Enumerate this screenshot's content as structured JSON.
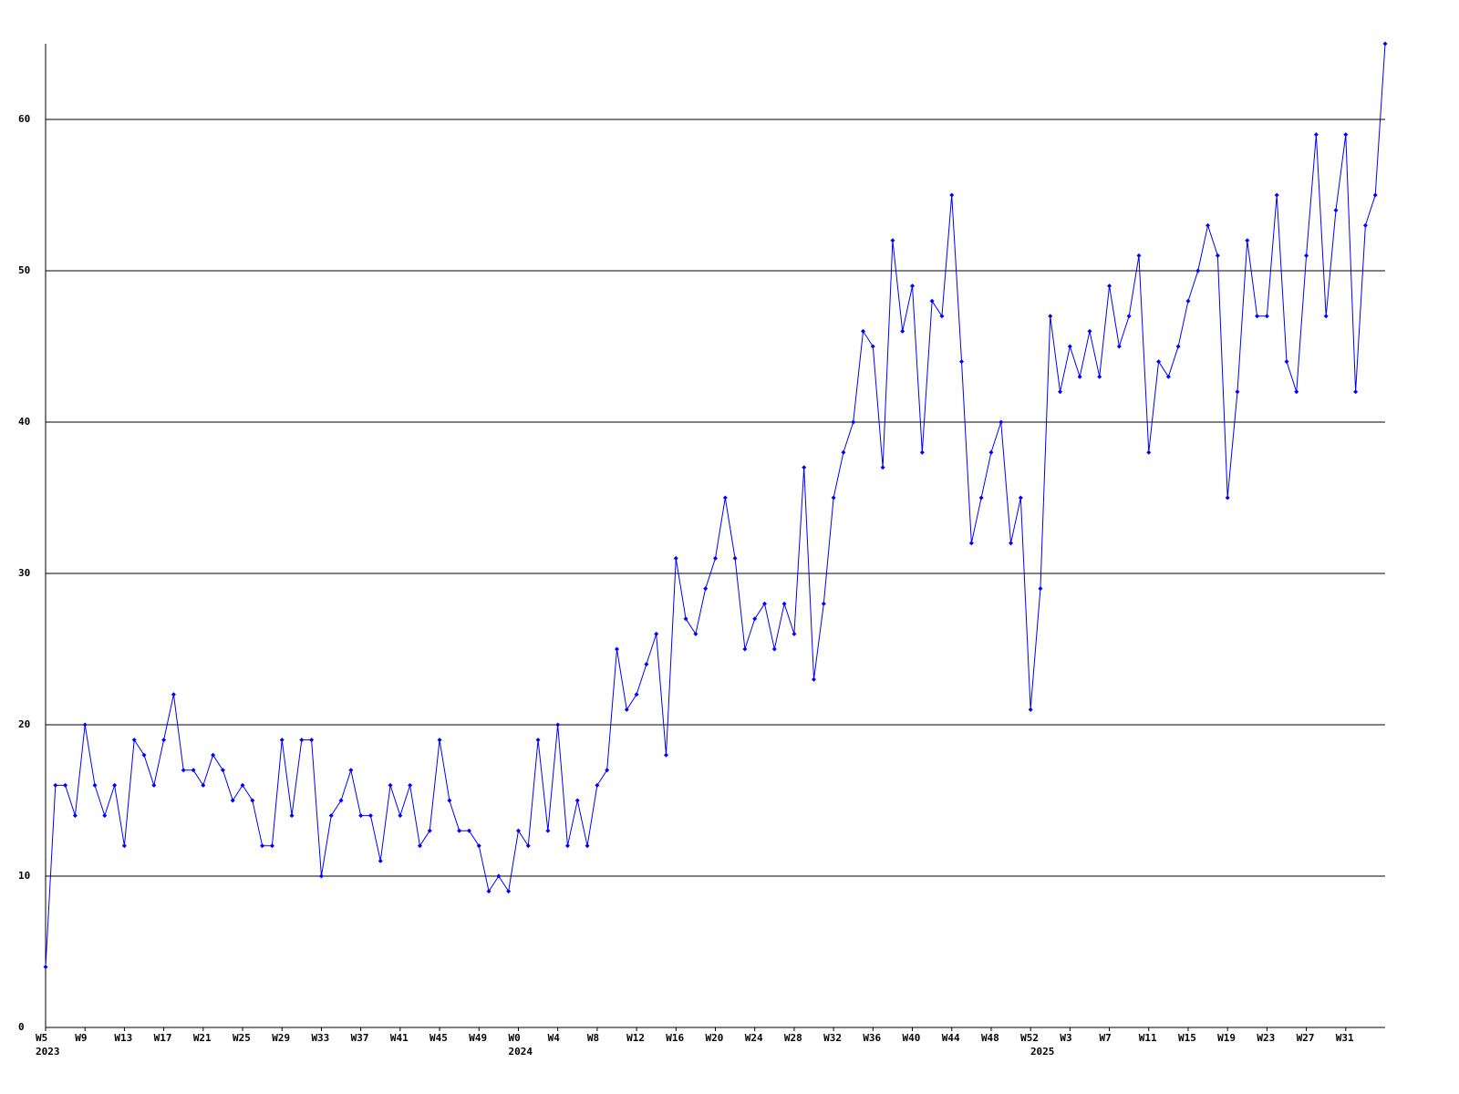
{
  "chart_data": {
    "type": "line",
    "categories": [
      "W5",
      null,
      null,
      null,
      "W9",
      null,
      null,
      null,
      "W13",
      null,
      null,
      null,
      "W17",
      null,
      null,
      null,
      "W21",
      null,
      null,
      null,
      "W25",
      null,
      null,
      null,
      "W29",
      null,
      null,
      null,
      "W33",
      null,
      null,
      null,
      "W37",
      null,
      null,
      null,
      "W41",
      null,
      null,
      null,
      "W45",
      null,
      null,
      null,
      "W49",
      null,
      null,
      null,
      "W0",
      null,
      null,
      null,
      "W4",
      null,
      null,
      null,
      "W8",
      null,
      null,
      null,
      "W12",
      null,
      null,
      null,
      "W16",
      null,
      null,
      null,
      "W20",
      null,
      null,
      null,
      "W24",
      null,
      null,
      null,
      "W28",
      null,
      null,
      null,
      "W32",
      null,
      null,
      null,
      "W36",
      null,
      null,
      null,
      "W40",
      null,
      null,
      null,
      "W44",
      null,
      null,
      null,
      "W48",
      null,
      null,
      null,
      "W52",
      null,
      null,
      null,
      "W3",
      null,
      null,
      null,
      "W7",
      null,
      null,
      null,
      "W11",
      null,
      null,
      null,
      "W15",
      null,
      null,
      null,
      "W19",
      null,
      null,
      null,
      "W23",
      null,
      null,
      null,
      "W27",
      null,
      null,
      null,
      "W31",
      null,
      null,
      null,
      null
    ],
    "category_years": [
      "2023",
      null,
      null,
      null,
      null,
      null,
      null,
      null,
      null,
      null,
      null,
      null,
      null,
      null,
      null,
      null,
      null,
      null,
      null,
      null,
      null,
      null,
      null,
      null,
      null,
      null,
      null,
      null,
      null,
      null,
      null,
      null,
      null,
      null,
      null,
      null,
      null,
      null,
      null,
      null,
      null,
      null,
      null,
      null,
      null,
      null,
      null,
      null,
      "2024",
      null,
      null,
      null,
      null,
      null,
      null,
      null,
      null,
      null,
      null,
      null,
      null,
      null,
      null,
      null,
      null,
      null,
      null,
      null,
      null,
      null,
      null,
      null,
      null,
      null,
      null,
      null,
      null,
      null,
      null,
      null,
      null,
      null,
      null,
      null,
      null,
      null,
      null,
      null,
      null,
      null,
      null,
      null,
      null,
      null,
      null,
      null,
      null,
      null,
      null,
      null,
      null,
      "2025",
      null,
      null,
      null,
      null,
      null,
      null,
      null,
      null,
      null,
      null,
      null,
      null,
      null,
      null,
      null,
      null,
      null,
      null,
      null,
      null,
      null,
      null,
      null,
      null,
      null,
      null,
      null,
      null,
      null,
      null,
      null,
      null,
      null,
      null,
      null
    ],
    "series": [
      {
        "color": "#0000ff",
        "values": [
          4,
          16,
          16,
          14,
          20,
          16,
          14,
          16,
          12,
          19,
          18,
          16,
          19,
          22,
          17,
          17,
          16,
          18,
          17,
          15,
          16,
          15,
          12,
          12,
          19,
          14,
          19,
          19,
          10,
          14,
          15,
          17,
          14,
          14,
          11,
          16,
          14,
          16,
          12,
          13,
          19,
          15,
          13,
          13,
          12,
          9,
          10,
          9,
          13,
          12,
          19,
          13,
          20,
          12,
          15,
          12,
          16,
          17,
          25,
          21,
          22,
          24,
          26,
          18,
          31,
          27,
          26,
          29,
          31,
          35,
          31,
          25,
          27,
          28,
          25,
          28,
          26,
          37,
          23,
          28,
          35,
          38,
          40,
          46,
          45,
          37,
          52,
          46,
          49,
          38,
          48,
          47,
          55,
          44,
          32,
          35,
          38,
          40,
          32,
          35,
          21,
          29,
          47,
          42,
          45,
          43,
          46,
          43,
          49,
          45,
          47,
          51,
          38,
          44,
          43,
          45,
          48,
          50,
          53,
          51,
          35,
          42,
          52,
          47,
          47,
          55,
          44,
          42,
          51,
          59,
          47,
          54,
          59,
          42,
          53,
          55,
          65
        ]
      }
    ],
    "ylim": [
      0,
      65
    ],
    "yticks": [
      0,
      10,
      20,
      30,
      40,
      50,
      60
    ],
    "grid": true
  }
}
